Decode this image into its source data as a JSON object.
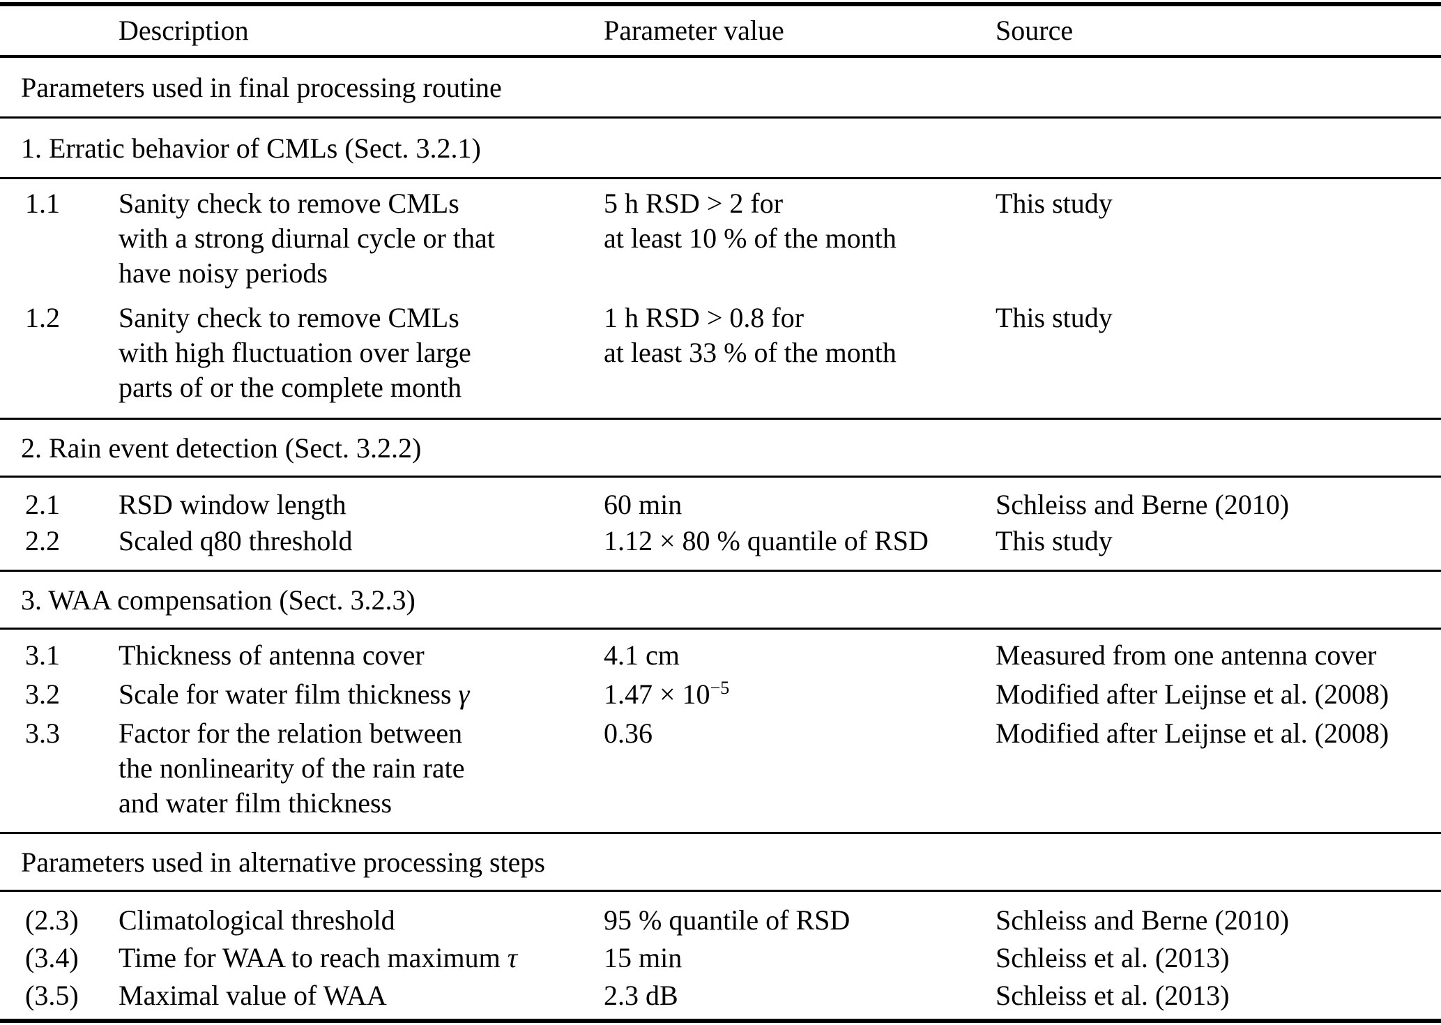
{
  "table": {
    "header": {
      "description": "Description",
      "parameter": "Parameter value",
      "source": "Source"
    },
    "part1_title": "Parameters used in final processing routine",
    "part2_title": "Parameters used in alternative processing steps",
    "groups": [
      {
        "title": "1. Erratic behavior of CMLs (Sect. 3.2.1)",
        "rows": [
          {
            "id": "1.1",
            "desc": "Sanity check to remove CMLs\nwith a strong diurnal cycle or that\nhave noisy periods",
            "param": "5 h RSD > 2 for\nat least 10 % of the month",
            "source": "This study"
          },
          {
            "id": "1.2",
            "desc": "Sanity check to remove CMLs\nwith high fluctuation over large\nparts of or the complete month",
            "param": "1 h RSD > 0.8 for\nat least 33 % of the month",
            "source": "This study"
          }
        ]
      },
      {
        "title": "2. Rain event detection (Sect. 3.2.2)",
        "rows": [
          {
            "id": "2.1",
            "desc": "RSD window length",
            "param": "60 min",
            "source": "Schleiss and Berne (2010)"
          },
          {
            "id": "2.2",
            "desc": "Scaled q80 threshold",
            "param": "1.12 × 80 % quantile of RSD",
            "source": "This study"
          }
        ]
      },
      {
        "title": "3. WAA compensation (Sect. 3.2.3)",
        "rows": [
          {
            "id": "3.1",
            "desc": "Thickness of antenna cover",
            "param": "4.1 cm",
            "source": "Measured from one antenna cover"
          },
          {
            "id": "3.2",
            "desc_text": "Scale for water film thickness ",
            "desc_symbol": "γ",
            "param_base": "1.47 × 10",
            "param_exponent": "−5",
            "source": "Modified after Leijnse et al. (2008)"
          },
          {
            "id": "3.3",
            "desc": "Factor for the relation between\nthe nonlinearity of the rain rate\nand water film thickness",
            "param": "0.36",
            "source": "Modified after Leijnse et al. (2008)"
          }
        ]
      }
    ],
    "alt_rows": [
      {
        "id": "(2.3)",
        "desc": "Climatological threshold",
        "param": "95 % quantile of RSD",
        "source": "Schleiss and Berne (2010)"
      },
      {
        "id": "(3.4)",
        "desc_text": "Time for WAA to reach maximum ",
        "desc_symbol": "τ",
        "param": "15 min",
        "source": "Schleiss et al. (2013)"
      },
      {
        "id": "(3.5)",
        "desc": "Maximal value of WAA",
        "param": "2.3 dB",
        "source": "Schleiss et al. (2013)"
      }
    ]
  }
}
